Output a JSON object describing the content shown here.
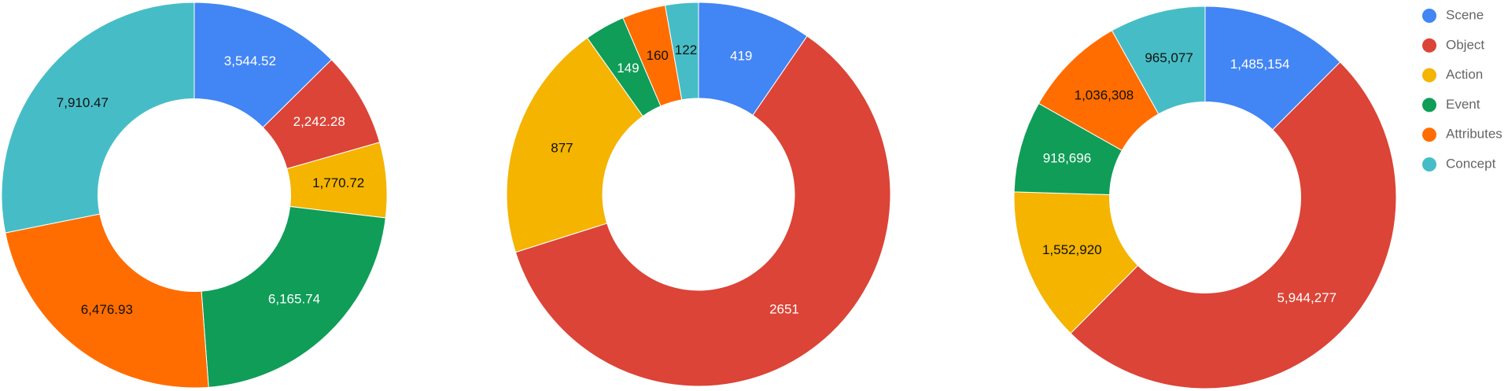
{
  "chart_data": [
    {
      "type": "pie",
      "donut": true,
      "categories": [
        "Scene",
        "Object",
        "Action",
        "Event",
        "Attributes",
        "Concept"
      ],
      "colors": [
        "#4285f4",
        "#db4437",
        "#f4b400",
        "#0f9d58",
        "#ff6d00",
        "#46bdc6"
      ],
      "values": [
        3544.52,
        2242.28,
        1770.72,
        6165.74,
        6476.93,
        7910.47
      ],
      "value_labels": [
        "3,544.52",
        "2,242.28",
        "1,770.72",
        "6,165.74",
        "6,476.93",
        "7,910.47"
      ]
    },
    {
      "type": "pie",
      "donut": true,
      "categories": [
        "Scene",
        "Object",
        "Action",
        "Event",
        "Attributes",
        "Concept"
      ],
      "colors": [
        "#4285f4",
        "#db4437",
        "#f4b400",
        "#0f9d58",
        "#ff6d00",
        "#46bdc6"
      ],
      "values": [
        419,
        2651,
        877,
        149,
        160,
        122
      ]
    },
    {
      "type": "pie",
      "donut": true,
      "legend": "right",
      "categories": [
        "Scene",
        "Object",
        "Action",
        "Event",
        "Attributes",
        "Concept"
      ],
      "colors": [
        "#4285f4",
        "#db4437",
        "#f4b400",
        "#0f9d58",
        "#ff6d00",
        "#46bdc6"
      ],
      "values": [
        1485154,
        5944277,
        1552920,
        918696,
        1036308,
        965077
      ],
      "value_labels": [
        "1,485,154",
        "5,944,277",
        "1,552,920",
        "918,696",
        "1,036,308",
        "965,077"
      ]
    }
  ]
}
